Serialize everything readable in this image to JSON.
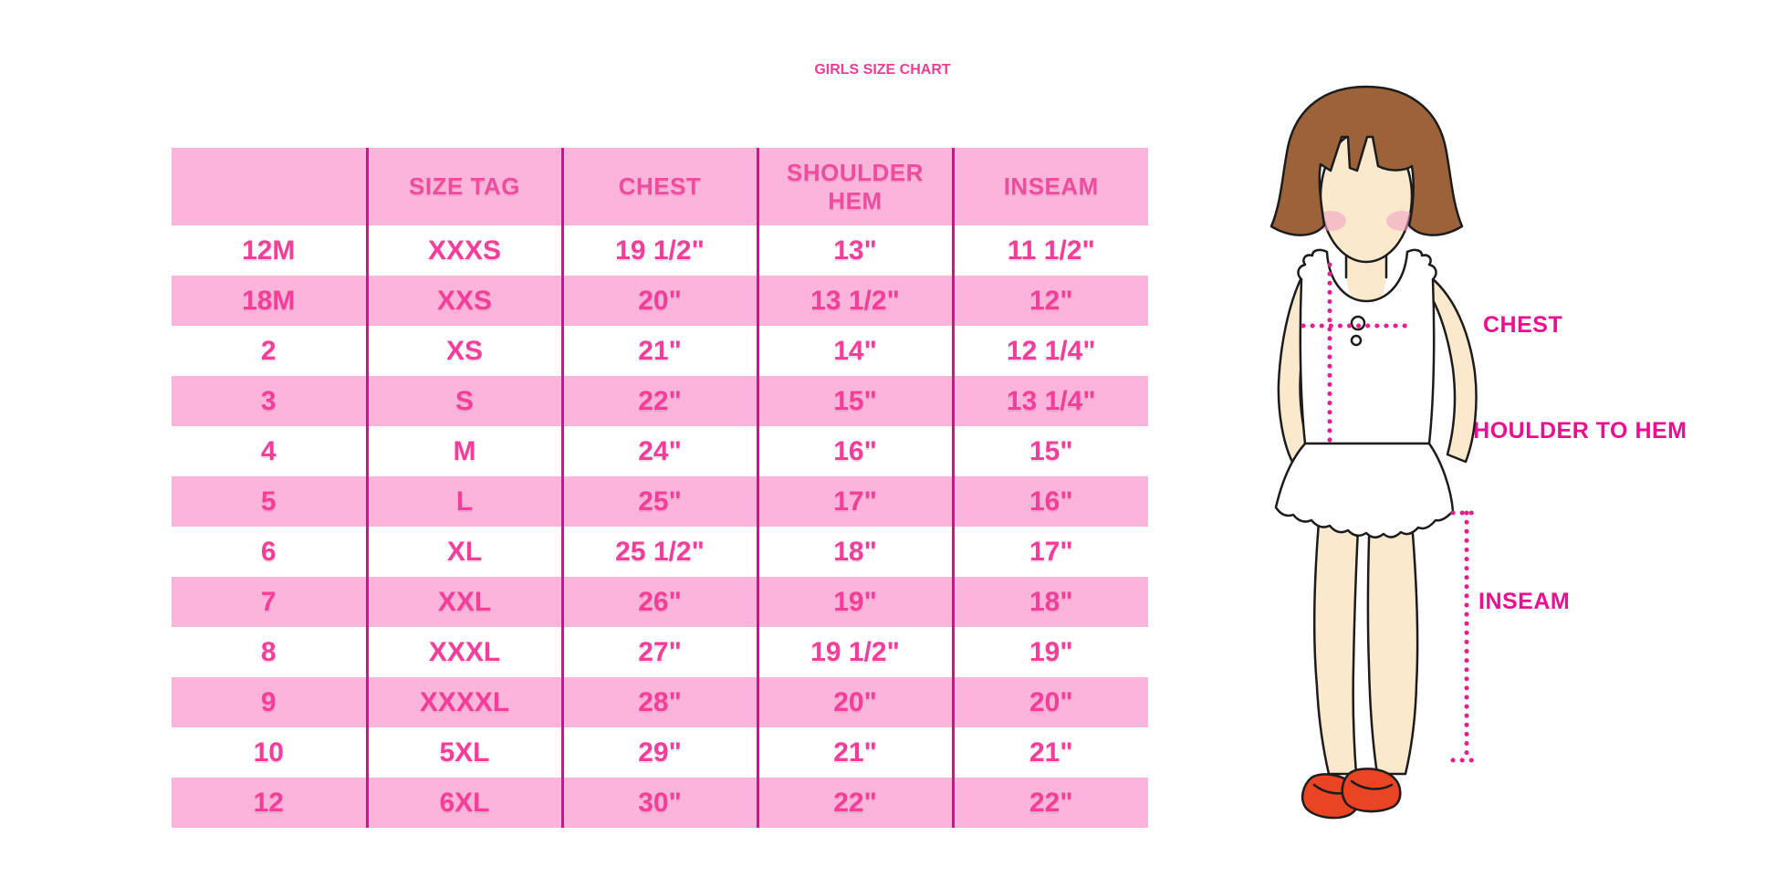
{
  "chart_data": {
    "type": "table",
    "title": "GIRLS SIZE CHART",
    "columns": [
      "",
      "SIZE TAG",
      "CHEST",
      "SHOULDER HEM",
      "INSEAM"
    ],
    "rows": [
      [
        "12M",
        "XXXS",
        "19 1/2\"",
        "13\"",
        "11 1/2\""
      ],
      [
        "18M",
        "XXS",
        "20\"",
        "13 1/2\"",
        "12\""
      ],
      [
        "2",
        "XS",
        "21\"",
        "14\"",
        "12 1/4\""
      ],
      [
        "3",
        "S",
        "22\"",
        "15\"",
        "13 1/4\""
      ],
      [
        "4",
        "M",
        "24\"",
        "16\"",
        "15\""
      ],
      [
        "5",
        "L",
        "25\"",
        "17\"",
        "16\""
      ],
      [
        "6",
        "XL",
        "25 1/2\"",
        "18\"",
        "17\""
      ],
      [
        "7",
        "XXL",
        "26\"",
        "19\"",
        "18\""
      ],
      [
        "8",
        "XXXL",
        "27\"",
        "19 1/2\"",
        "19\""
      ],
      [
        "9",
        "XXXXL",
        "28\"",
        "20\"",
        "20\""
      ],
      [
        "10",
        "5XL",
        "29\"",
        "21\"",
        "21\""
      ],
      [
        "12",
        "6XL",
        "30\"",
        "22\"",
        "22\""
      ]
    ]
  },
  "diagram": {
    "labels": {
      "chest": "CHEST",
      "shoulder_to_hem": "SHOULDER TO HEM",
      "inseam": "INSEAM"
    },
    "figure": "toddler-girl-with-measurement-dotted-lines"
  },
  "colors": {
    "title_pink": "#EE3D96",
    "row_pink": "#FBB5DA",
    "divider_magenta": "#DE0B8C",
    "cell_text_pink": "#F43E9A",
    "label_magenta": "#EC0E8F",
    "dotted_line": "#EC1C8D",
    "hair_brown": "#9C6239",
    "skin": "#FAE9CD",
    "shoe_red": "#E94423"
  }
}
